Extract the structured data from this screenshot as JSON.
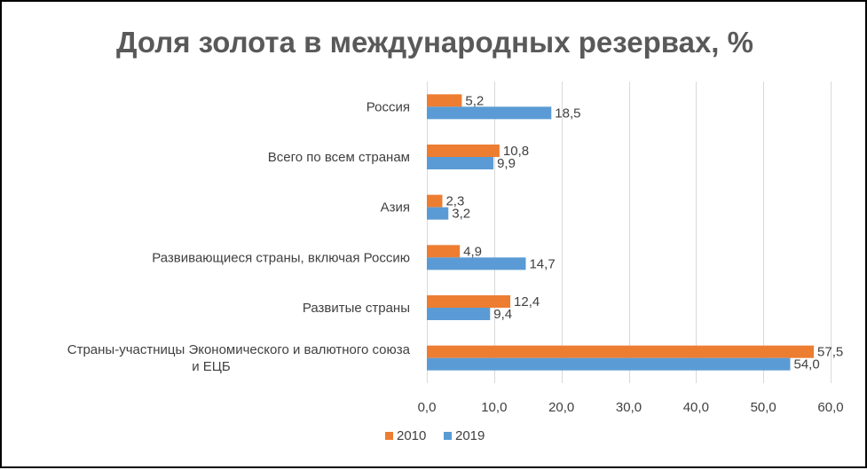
{
  "chart_data": {
    "type": "bar",
    "orientation": "horizontal",
    "title": "Доля золота в международных резервах, %",
    "categories": [
      "Россия",
      "Всего по всем странам",
      "Азия",
      "Развивающиеся страны, включая Россию",
      "Развитые страны",
      "Страны-участницы Экономического и валютного союза и ЕЦБ"
    ],
    "category_label_lines": [
      [
        "Россия"
      ],
      [
        "Всего по всем странам"
      ],
      [
        "Азия"
      ],
      [
        "Развивающиеся страны, включая Россию"
      ],
      [
        "Развитые страны"
      ],
      [
        "Страны-участницы Экономического и валютного союза",
        "и ЕЦБ"
      ]
    ],
    "series": [
      {
        "name": "2010",
        "color": "#ed7d31",
        "values": [
          5.2,
          10.8,
          2.3,
          4.9,
          12.4,
          57.5
        ],
        "labels": [
          "5,2",
          "10,8",
          "2,3",
          "4,9",
          "12,4",
          "57,5"
        ]
      },
      {
        "name": "2019",
        "color": "#5b9bd5",
        "values": [
          18.5,
          9.9,
          3.2,
          14.7,
          9.4,
          54.0
        ],
        "labels": [
          "18,5",
          "9,9",
          "3,2",
          "14,7",
          "9,4",
          "54,0"
        ]
      }
    ],
    "xlim": [
      0,
      60
    ],
    "x_ticks": [
      0,
      10,
      20,
      30,
      40,
      50,
      60
    ],
    "x_tick_labels": [
      "0,0",
      "10,0",
      "20,0",
      "30,0",
      "40,0",
      "50,0",
      "60,0"
    ],
    "xlabel": "",
    "ylabel": "",
    "grid": true,
    "legend_position": "bottom",
    "legend": [
      "2010",
      "2019"
    ]
  }
}
